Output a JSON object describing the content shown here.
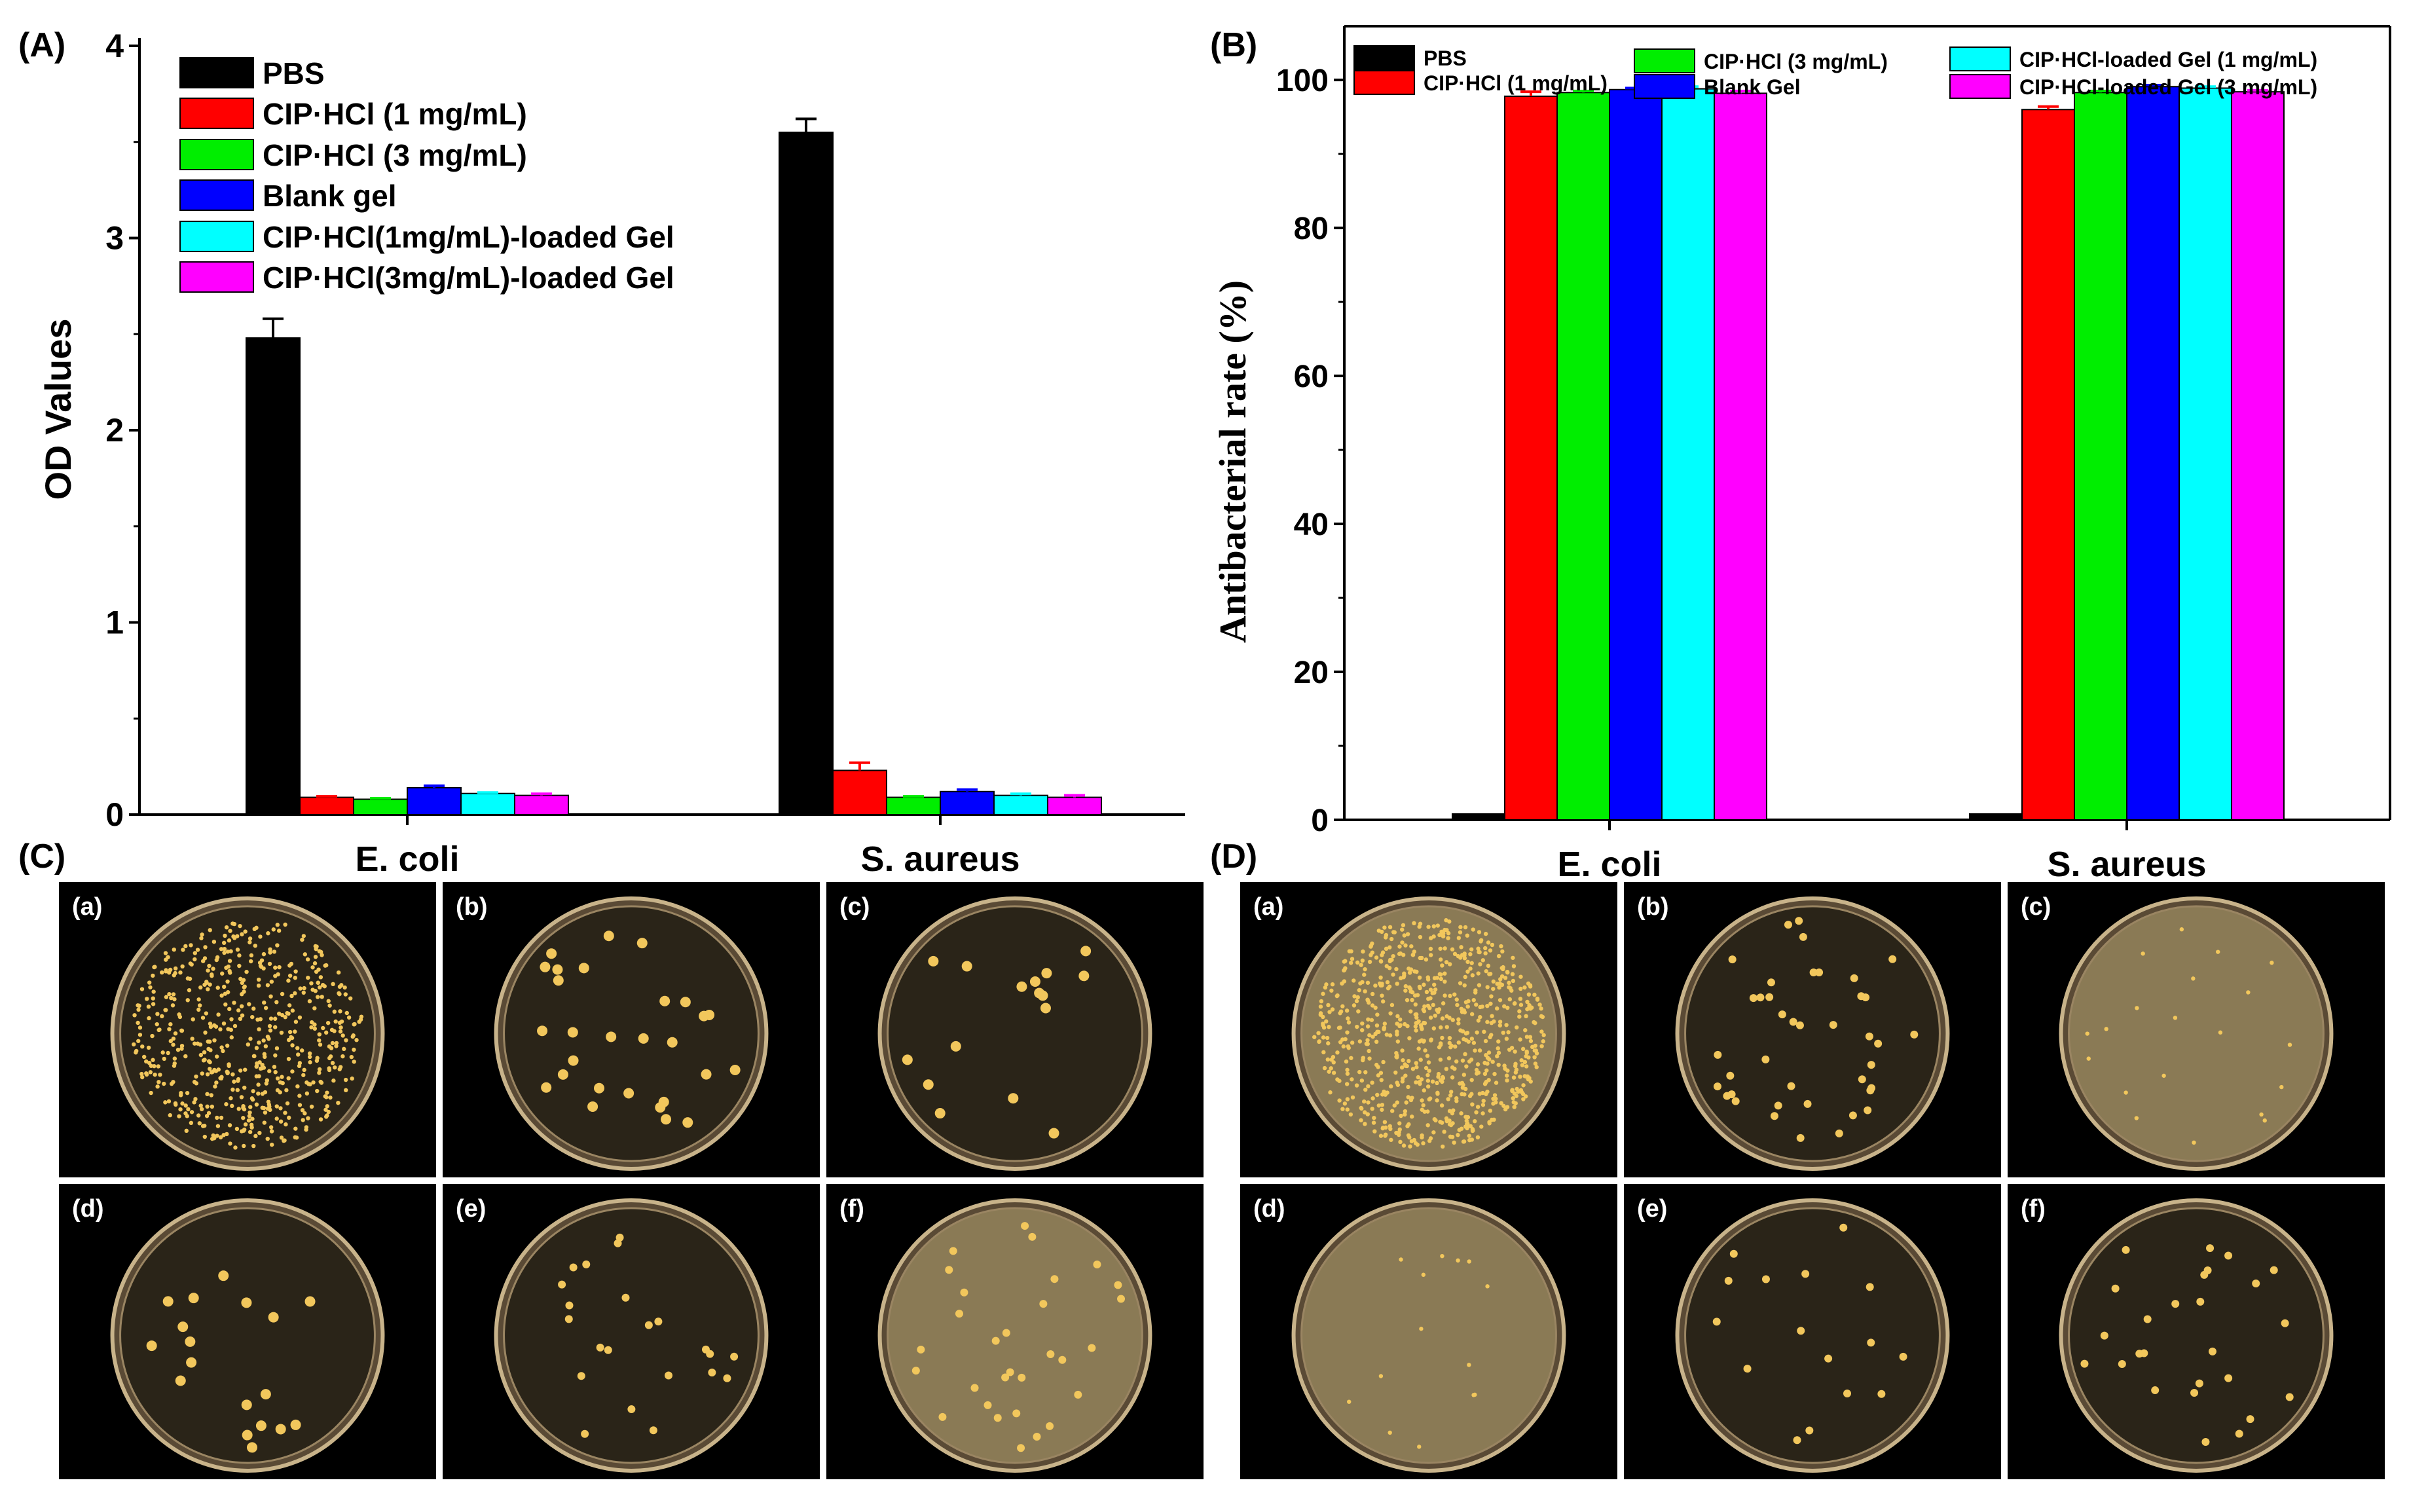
{
  "panel_labels": {
    "A": "(A)",
    "B": "(B)",
    "C": "(C)",
    "D": "(D)"
  },
  "colors": {
    "series": [
      "#000000",
      "#ff0000",
      "#00ee00",
      "#0000ff",
      "#00ffff",
      "#ff00ff"
    ],
    "photo_bg": "#000000",
    "agar_clear": "#2a2418",
    "agar_amber": "#8a7a55",
    "colony": "#f2c75c"
  },
  "chart_data": [
    {
      "type": "bar",
      "panel": "A",
      "categories": [
        "E. coli",
        "S. aureus"
      ],
      "ylabel": "OD Values",
      "ylim": [
        0,
        4
      ],
      "yticks": [
        "0",
        "1",
        "2",
        "3",
        "4"
      ],
      "legend": "top-left",
      "series": [
        {
          "name": "PBS",
          "values": [
            2.48,
            3.55
          ],
          "errors": [
            0.1,
            0.07
          ]
        },
        {
          "name": "CIP·HCl  (1 mg/mL)",
          "values": [
            0.09,
            0.23
          ],
          "errors": [
            0.005,
            0.04
          ]
        },
        {
          "name": "CIP·HCl  (3 mg/mL)",
          "values": [
            0.08,
            0.09
          ],
          "errors": [
            0.005,
            0.005
          ]
        },
        {
          "name": "Blank gel",
          "values": [
            0.14,
            0.12
          ],
          "errors": [
            0.01,
            0.01
          ]
        },
        {
          "name": "CIP·HCl(1mg/mL)-loaded Gel",
          "values": [
            0.11,
            0.1
          ],
          "errors": [
            0.005,
            0.008
          ]
        },
        {
          "name": "CIP·HCl(3mg/mL)-loaded Gel",
          "values": [
            0.1,
            0.09
          ],
          "errors": [
            0.008,
            0.01
          ]
        }
      ]
    },
    {
      "type": "bar",
      "panel": "B",
      "categories": [
        "E. coli",
        "S. aureus"
      ],
      "ylabel": "Antibacterial rate (%)",
      "ylim": [
        0,
        107
      ],
      "yticks": [
        "0",
        "20",
        "40",
        "60",
        "80",
        "100"
      ],
      "legend": "top",
      "series": [
        {
          "name": "PBS",
          "values": [
            0.8,
            0.8
          ],
          "errors": [
            0,
            0
          ]
        },
        {
          "name": "CIP·HCl (1 mg/mL)",
          "values": [
            97.8,
            96.0
          ],
          "errors": [
            0.6,
            0.4
          ]
        },
        {
          "name": "CIP·HCl (3 mg/mL)",
          "values": [
            98.3,
            98.3
          ],
          "errors": [
            0.2,
            0.2
          ]
        },
        {
          "name": "Blank Gel",
          "values": [
            98.7,
            99.1
          ],
          "errors": [
            0.2,
            0.2
          ]
        },
        {
          "name": "CIP·HCl-loaded Gel (1 mg/mL)",
          "values": [
            98.8,
            98.9
          ],
          "errors": [
            0.3,
            0.2
          ]
        },
        {
          "name": "CIP·HCl-loaded Gel (3 mg/mL)",
          "values": [
            98.2,
            98.4
          ],
          "errors": [
            0.3,
            0.2
          ]
        }
      ]
    }
  ],
  "photos": {
    "C": [
      {
        "label": "(a)",
        "agar": "clear",
        "colonies": 600,
        "size": "small"
      },
      {
        "label": "(b)",
        "agar": "clear",
        "colonies": 28,
        "size": "large"
      },
      {
        "label": "(c)",
        "agar": "clear",
        "colonies": 16,
        "size": "large"
      },
      {
        "label": "(d)",
        "agar": "clear",
        "colonies": 18,
        "size": "large"
      },
      {
        "label": "(e)",
        "agar": "clear",
        "colonies": 22,
        "size": "medium"
      },
      {
        "label": "(f)",
        "agar": "amber",
        "colonies": 30,
        "size": "medium"
      }
    ],
    "D": [
      {
        "label": "(a)",
        "agar": "amber",
        "colonies": 800,
        "size": "small"
      },
      {
        "label": "(b)",
        "agar": "clear",
        "colonies": 40,
        "size": "medium"
      },
      {
        "label": "(c)",
        "agar": "amber",
        "colonies": 20,
        "size": "small"
      },
      {
        "label": "(d)",
        "agar": "amber",
        "colonies": 14,
        "size": "small"
      },
      {
        "label": "(e)",
        "agar": "clear",
        "colonies": 16,
        "size": "medium"
      },
      {
        "label": "(f)",
        "agar": "clear",
        "colonies": 26,
        "size": "medium"
      }
    ]
  }
}
